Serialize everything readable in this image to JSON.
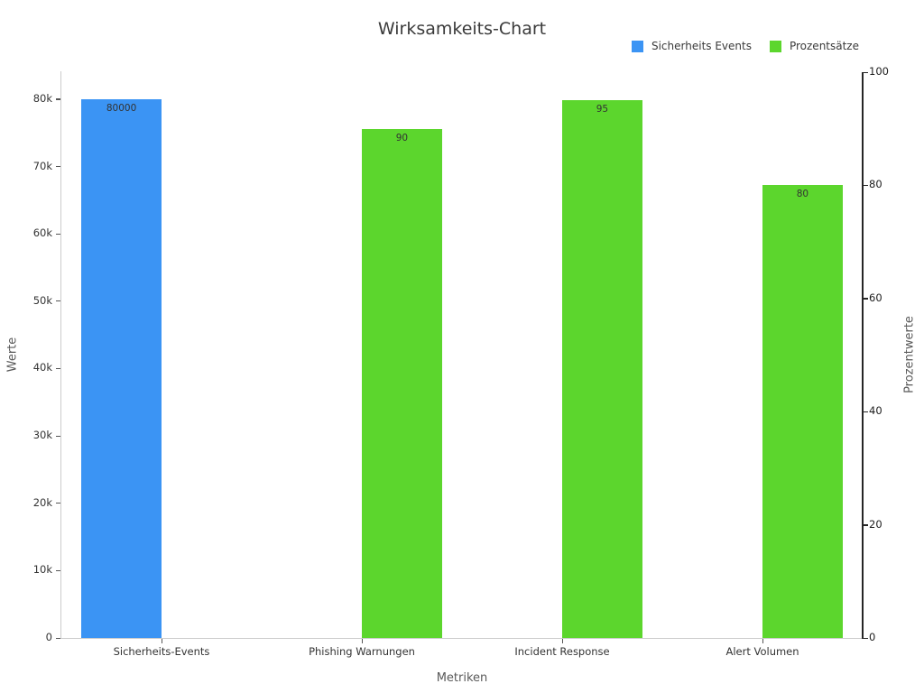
{
  "title": "Wirksamkeits-Chart",
  "colors": {
    "series_blue": "#3B94F4",
    "series_green": "#5CD62D",
    "spine_light": "#cccccc",
    "spine_dark": "#262626",
    "text_dark": "#333333",
    "text_muted": "#595959"
  },
  "chart_data": {
    "type": "bar",
    "title": "Wirksamkeits-Chart",
    "xlabel": "Metriken",
    "ylabel_left": "Werte",
    "ylabel_right": "Prozentwerte",
    "grid": false,
    "legend_position": "top-right",
    "categories": [
      "Sicherheits-Events",
      "Phishing Warnungen",
      "Incident Response",
      "Alert Volumen"
    ],
    "legend": [
      {
        "label": "Sicherheits Events",
        "color": "#3B94F4"
      },
      {
        "label": "Prozentsätze",
        "color": "#5CD62D"
      }
    ],
    "series": [
      {
        "name": "Sicherheits Events",
        "axis": "left",
        "color": "#3B94F4",
        "values": [
          80000,
          0,
          0,
          0
        ],
        "bar_labels": [
          "80000",
          "",
          "",
          ""
        ]
      },
      {
        "name": "Prozentsätze",
        "axis": "right",
        "color": "#5CD62D",
        "values": [
          0,
          90,
          95,
          80
        ],
        "bar_labels": [
          "",
          "90",
          "95",
          "80"
        ]
      }
    ],
    "y_axis_left": {
      "label": "Werte",
      "min": 0,
      "max": 84000,
      "ticks": [
        {
          "value": 0,
          "label": "0"
        },
        {
          "value": 10000,
          "label": "10k"
        },
        {
          "value": 20000,
          "label": "20k"
        },
        {
          "value": 30000,
          "label": "30k"
        },
        {
          "value": 40000,
          "label": "40k"
        },
        {
          "value": 50000,
          "label": "50k"
        },
        {
          "value": 60000,
          "label": "60k"
        },
        {
          "value": 70000,
          "label": "70k"
        },
        {
          "value": 80000,
          "label": "80k"
        }
      ]
    },
    "y_axis_right": {
      "label": "Prozentwerte",
      "min": 0,
      "max": 100,
      "ticks": [
        {
          "value": 0,
          "label": "0"
        },
        {
          "value": 20,
          "label": "20"
        },
        {
          "value": 40,
          "label": "40"
        },
        {
          "value": 60,
          "label": "60"
        },
        {
          "value": 80,
          "label": "80"
        },
        {
          "value": 100,
          "label": "100"
        }
      ]
    }
  }
}
